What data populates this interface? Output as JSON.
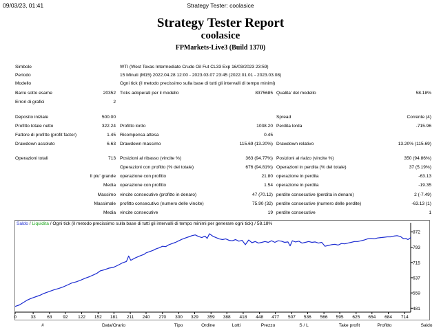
{
  "print_header": {
    "date": "09/03/23, 01:41",
    "title": "Strategy Tester: coolasice"
  },
  "report": {
    "title": "Strategy Tester Report",
    "ea_name": "coolasice",
    "server": "FPMarkets-Live3 (Build 1370)"
  },
  "info": {
    "simbolo_label": "Simbolo",
    "simbolo_value": "WTI (West Texas Intermediate Crude Oil Fut CL33 Exp 16/03/2023 23:59)",
    "periodo_label": "Periodo",
    "periodo_value": "15 Minuti (M15) 2022.04.28 12:00 - 2023.03.07 23:45 (2022.01.01 - 2023.03.08)",
    "modello_label": "Modello",
    "modello_value": "Ogni tick (il metodo precissimo sulla base di tutti gli intervalli di tempo minimi)"
  },
  "stats": {
    "barre_label": "Barre sotto esame",
    "barre_value": "20352",
    "ticks_label": "Ticks adoperati per il modello",
    "ticks_value": "8375685",
    "qualita_label": "Qualita' del modello",
    "qualita_value": "58.18%",
    "errori_label": "Errori di grafici",
    "errori_value": "2",
    "deposito_label": "Deposito iniziale",
    "deposito_value": "500.00",
    "spread_label": "Spread",
    "spread_value": "Corrente (4)",
    "profitto_netto_label": "Profitto totale netto",
    "profitto_netto_value": "322.24",
    "profitto_lordo_label": "Profitto lordo",
    "profitto_lordo_value": "1038.20",
    "perdita_lorda_label": "Perdita lorda",
    "perdita_lorda_value": "-715.96",
    "fattore_label": "Fattore di profitto (profit factor)",
    "fattore_value": "1.45",
    "ricompensa_label": "Ricompensa attesa",
    "ricompensa_value": "0.45",
    "dd_assoluto_label": "Drawdown assoluto",
    "dd_assoluto_value": "6.63",
    "dd_massimo_label": "Drawdown massimo",
    "dd_massimo_value": "115.69 (13.20%)",
    "dd_relativo_label": "Drawdown relativo",
    "dd_relativo_value": "13.20% (115.69)",
    "operazioni_label": "Operazioni totali",
    "operazioni_value": "713",
    "pos_ribasso_label": "Posizioni al ribasso (vincite %)",
    "pos_ribasso_value": "363 (94.77%)",
    "pos_rialzo_label": "Posizioni al rialzo (vincite %)",
    "pos_rialzo_value": "350 (94.86%)",
    "op_profitto_label": "Operazioni con profitto (% del totale)",
    "op_profitto_value": "676 (94.81%)",
    "op_perdita_label": "Operazioni in perdita (% del totale)",
    "op_perdita_value": "37 (5.19%)",
    "piu_grande_label": "Il piu' grande",
    "grande_profitto_label": "operazione con profitto",
    "grande_profitto_value": "21.80",
    "grande_perdita_label": "operazione in perdita",
    "grande_perdita_value": "-63.13",
    "media_label": "Media",
    "media_profitto_label": "operazione con profitto",
    "media_profitto_value": "1.54",
    "media_perdita_label": "operazione in perdita",
    "media_perdita_value": "-19.35",
    "massimo_label": "Massimo",
    "max_vincite_label": "vincite consecutive (profitto in denaro)",
    "max_vincite_value": "47 (70.12)",
    "max_perdite_label": "perdite consecutive (perdita in denaro)",
    "max_perdite_value": "2 (-7.49)",
    "massimale_label": "Massimale",
    "massimale_profitto_label": "profitto consecutivo (numero delle vincite)",
    "massimale_profitto_value": "75.90 (32)",
    "massimale_perdita_label": "perdite consecutive (numero delle perdite)",
    "massimale_perdita_value": "-63.13 (1)",
    "media2_label": "Media",
    "media_vincite_label": "vincite consecutive",
    "media_vincite_value": "19",
    "media_perdite_label": "perdite consecutive",
    "media_perdite_value": "1"
  },
  "chart_legend": {
    "saldo": "Saldo",
    "sep1": " / ",
    "liquidita": "Liquidita",
    "rest": " / Ogni tick (il metodo precissimo sulla base di tutti gli intervalli di tempo minimi per generare ogni tick) / 58.18%"
  },
  "chart_data": {
    "type": "line",
    "title": "",
    "xlabel": "",
    "ylabel": "",
    "x_ticks": [
      0,
      33,
      63,
      92,
      122,
      152,
      181,
      211,
      240,
      270,
      300,
      329,
      359,
      388,
      418,
      448,
      477,
      507,
      536,
      566,
      595,
      625,
      654,
      684,
      714
    ],
    "y_ticks": [
      481,
      559,
      637,
      715,
      793,
      872
    ],
    "xlim": [
      0,
      725
    ],
    "ylim": [
      468,
      890
    ],
    "grid": false,
    "legend_position": "top-left",
    "colors": {
      "saldo": "#1b2bd0",
      "liquidita": "#1aa51a",
      "axis": "#000000"
    },
    "series": [
      {
        "name": "Saldo",
        "x": [
          0,
          8,
          16,
          22,
          28,
          34,
          40,
          46,
          52,
          58,
          64,
          72,
          80,
          88,
          96,
          104,
          112,
          120,
          128,
          136,
          144,
          150,
          156,
          164,
          172,
          180,
          188,
          196,
          204,
          208,
          212,
          220,
          228,
          236,
          240,
          246,
          252,
          258,
          264,
          270,
          276,
          282,
          288,
          294,
          300,
          306,
          312,
          318,
          324,
          330,
          336,
          342,
          348,
          352,
          356,
          362,
          368,
          374,
          380,
          386,
          392,
          398,
          404,
          410,
          416,
          422,
          428,
          434,
          440,
          446,
          452,
          458,
          464,
          470,
          476,
          482,
          488,
          494,
          500,
          504,
          508,
          514,
          520,
          526,
          532,
          538,
          544,
          550,
          556,
          562,
          568,
          574,
          580,
          586,
          592,
          598,
          604,
          610,
          616,
          622,
          628,
          634,
          640,
          646,
          652,
          658,
          664,
          670,
          676,
          682,
          688,
          694,
          700,
          706,
          712,
          716,
          720,
          725
        ],
        "y": [
          490,
          498,
          512,
          522,
          530,
          536,
          542,
          548,
          556,
          562,
          568,
          576,
          582,
          590,
          600,
          610,
          616,
          624,
          634,
          642,
          652,
          660,
          672,
          678,
          686,
          690,
          700,
          712,
          720,
          748,
          726,
          738,
          748,
          756,
          764,
          770,
          776,
          784,
          790,
          798,
          796,
          806,
          812,
          818,
          826,
          834,
          840,
          846,
          852,
          856,
          848,
          842,
          850,
          838,
          862,
          850,
          842,
          836,
          832,
          836,
          828,
          826,
          832,
          824,
          828,
          806,
          830,
          816,
          822,
          814,
          818,
          822,
          818,
          826,
          818,
          826,
          824,
          818,
          820,
          800,
          826,
          820,
          824,
          814,
          818,
          822,
          818,
          820,
          814,
          818,
          798,
          802,
          806,
          808,
          804,
          812,
          810,
          814,
          818,
          822,
          822,
          826,
          830,
          836,
          838,
          836,
          840,
          842,
          844,
          846,
          846,
          850,
          852,
          848,
          836,
          838,
          832,
          842
        ]
      }
    ]
  },
  "bottom_headers": [
    "#",
    "Data/Orario",
    "Tipo",
    "Ordine",
    "Lotti",
    "Prezzo",
    "S / L",
    "Take profit",
    "Profitto",
    "Saldo"
  ]
}
